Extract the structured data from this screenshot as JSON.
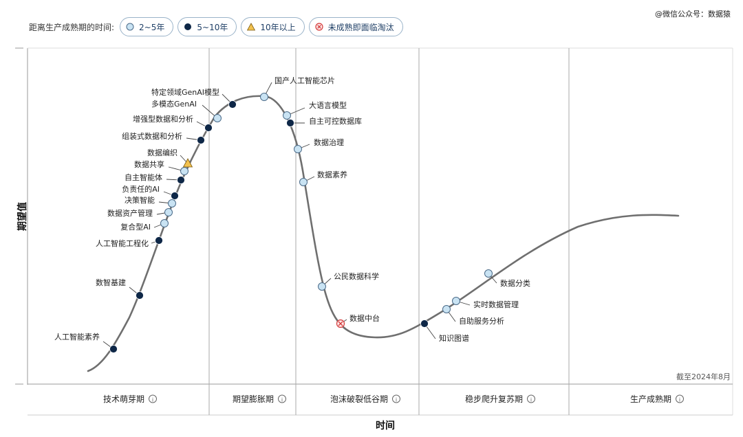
{
  "legend": {
    "title": "距离生产成熟期的时间:",
    "items": [
      {
        "label": "2~5年",
        "icon": "light-blue-circle-icon",
        "color": "#c9e3f3"
      },
      {
        "label": "5~10年",
        "icon": "dark-navy-circle-icon",
        "color": "#0e2747"
      },
      {
        "label": "10年以上",
        "icon": "yellow-triangle-icon",
        "color": "#f2c14e"
      },
      {
        "label": "未成熟即面临淘汰",
        "icon": "red-x-circle-icon",
        "color": "#d43a3a"
      }
    ]
  },
  "credit": "@微信公众号：数据猿",
  "chart_data": {
    "type": "scatter",
    "ylabel": "期望值",
    "xlabel": "时间",
    "note": "截至2024年8月",
    "phases": [
      "技术萌芽期",
      "期望膨胀期",
      "泡沫破裂低谷期",
      "稳步爬升复苏期",
      "生产成熟期"
    ],
    "grid": true,
    "points": [
      {
        "name": "人工智能素养",
        "time": "5~10年",
        "phase": "技术萌芽期"
      },
      {
        "name": "数智基建",
        "time": "5~10年",
        "phase": "技术萌芽期"
      },
      {
        "name": "人工智能工程化",
        "time": "5~10年",
        "phase": "技术萌芽期"
      },
      {
        "name": "复合型AI",
        "time": "2~5年",
        "phase": "技术萌芽期"
      },
      {
        "name": "数据资产管理",
        "time": "2~5年",
        "phase": "技术萌芽期"
      },
      {
        "name": "决策智能",
        "time": "2~5年",
        "phase": "技术萌芽期"
      },
      {
        "name": "负责任的AI",
        "time": "5~10年",
        "phase": "技术萌芽期"
      },
      {
        "name": "自主智能体",
        "time": "5~10年",
        "phase": "技术萌芽期"
      },
      {
        "name": "数据共享",
        "time": "2~5年",
        "phase": "技术萌芽期"
      },
      {
        "name": "数据编织",
        "time": "10年以上",
        "phase": "技术萌芽期"
      },
      {
        "name": "组装式数据和分析",
        "time": "5~10年",
        "phase": "技术萌芽期"
      },
      {
        "name": "增强型数据和分析",
        "time": "5~10年",
        "phase": "技术萌芽期"
      },
      {
        "name": "多模态GenAI",
        "time": "2~5年",
        "phase": "期望膨胀期"
      },
      {
        "name": "特定领域GenAI模型",
        "time": "5~10年",
        "phase": "期望膨胀期"
      },
      {
        "name": "国产人工智能芯片",
        "time": "2~5年",
        "phase": "期望膨胀期"
      },
      {
        "name": "大语言模型",
        "time": "2~5年",
        "phase": "期望膨胀期"
      },
      {
        "name": "自主可控数据库",
        "time": "5~10年",
        "phase": "期望膨胀期"
      },
      {
        "name": "数据治理",
        "time": "2~5年",
        "phase": "泡沫破裂低谷期"
      },
      {
        "name": "数据素养",
        "time": "2~5年",
        "phase": "泡沫破裂低谷期"
      },
      {
        "name": "公民数据科学",
        "time": "2~5年",
        "phase": "泡沫破裂低谷期"
      },
      {
        "name": "数据中台",
        "time": "未成熟即面临淘汰",
        "phase": "泡沫破裂低谷期"
      },
      {
        "name": "知识图谱",
        "time": "5~10年",
        "phase": "稳步爬升复苏期"
      },
      {
        "name": "自助服务分析",
        "time": "2~5年",
        "phase": "稳步爬升复苏期"
      },
      {
        "name": "实时数据管理",
        "time": "2~5年",
        "phase": "稳步爬升复苏期"
      },
      {
        "name": "数据分类",
        "time": "2~5年",
        "phase": "稳步爬升复苏期"
      }
    ]
  }
}
